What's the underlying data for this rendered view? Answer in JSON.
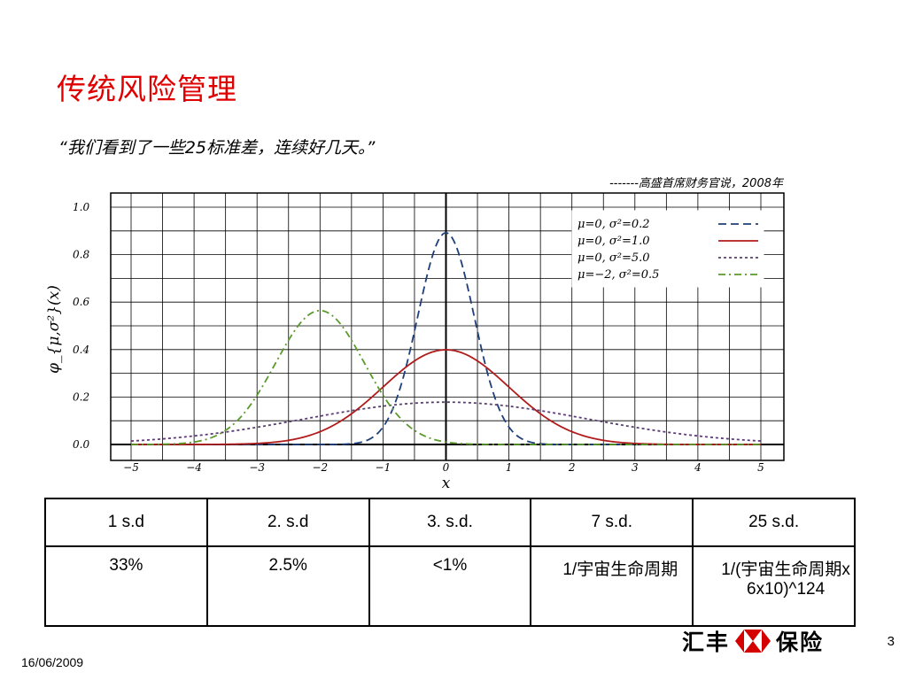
{
  "slide": {
    "title": "传统风险管理",
    "quote": "“我们看到了一些25标准差，连续好几天。”",
    "attribution": "-------高盛首席财务官说，2008年",
    "date": "16/06/2009",
    "page_number": "3",
    "logo": {
      "left_text": "汇丰",
      "right_text": "保险",
      "icon": "hsbc-hexagon-icon",
      "colors": {
        "red": "#d40000"
      }
    }
  },
  "chart_data": {
    "type": "line",
    "title": "",
    "xlabel": "x",
    "ylabel": "φ_{μ,σ²}(x)",
    "xlim": [
      -5,
      5
    ],
    "ylim": [
      0,
      1.0
    ],
    "x_ticks": [
      "−5",
      "−4",
      "−3",
      "−2",
      "−1",
      "0",
      "1",
      "2",
      "3",
      "4",
      "5"
    ],
    "y_ticks": [
      "0.0",
      "0.2",
      "0.4",
      "0.6",
      "0.8",
      "1.0"
    ],
    "grid": true,
    "legend_placement": "top-right",
    "series": [
      {
        "name": "μ=0,    σ²=0.2",
        "mu": 0,
        "variance": 0.2,
        "color": "#1f3f7a",
        "style": "dashed"
      },
      {
        "name": "μ=0,    σ²=1.0",
        "mu": 0,
        "variance": 1.0,
        "color": "#b11b1b",
        "style": "solid"
      },
      {
        "name": "μ=0,    σ²=5.0",
        "mu": 0,
        "variance": 5.0,
        "color": "#5b3d73",
        "style": "dotted"
      },
      {
        "name": "μ=−2, σ²=0.5",
        "mu": -2,
        "variance": 0.5,
        "color": "#5a9a2a",
        "style": "dashdot"
      }
    ]
  },
  "table": {
    "headers": [
      "1 s.d",
      "2. s.d",
      "3. s.d.",
      "7 s.d.",
      "25 s.d."
    ],
    "row": [
      "33%",
      "2.5%",
      "<1%",
      "1/宇宙生命周期",
      "1/(宇宙生命周期x 6x10)^124"
    ]
  }
}
